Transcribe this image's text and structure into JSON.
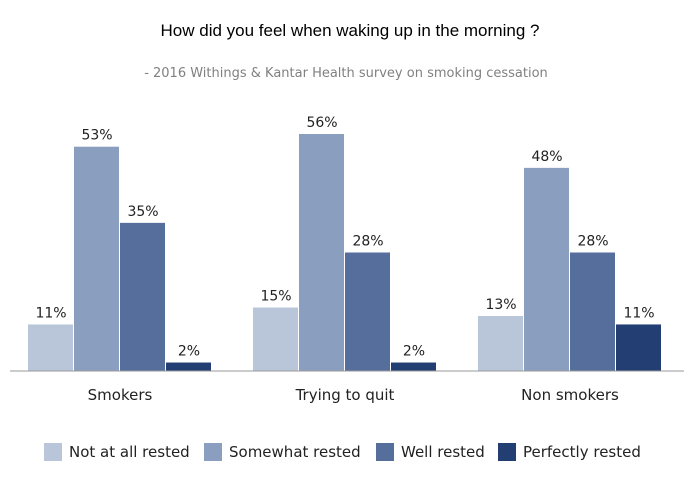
{
  "chart_data": {
    "type": "bar",
    "title": "How did you feel when waking up in the morning ?",
    "subtitle": "- 2016 Withings & Kantar Health survey on smoking cessation",
    "categories": [
      "Smokers",
      "Trying to quit",
      "Non smokers"
    ],
    "series": [
      {
        "name": "Not at all rested",
        "values": [
          11,
          15,
          13
        ],
        "labels": [
          "11%",
          "15%",
          "13%"
        ],
        "color": "#b9c6da"
      },
      {
        "name": "Somewhat rested",
        "values": [
          53,
          56,
          48
        ],
        "labels": [
          "53%",
          "56%",
          "48%"
        ],
        "color": "#8a9fbf"
      },
      {
        "name": "Well rested",
        "values": [
          35,
          28,
          28
        ],
        "labels": [
          "35%",
          "28%",
          "28%"
        ],
        "color": "#566e9c"
      },
      {
        "name": "Perfectly rested",
        "values": [
          2,
          2,
          11
        ],
        "labels": [
          "2%",
          "2%",
          "11%"
        ],
        "color": "#233e73"
      }
    ],
    "ylim": [
      0,
      56
    ],
    "grid": false,
    "legend": "bottom"
  }
}
